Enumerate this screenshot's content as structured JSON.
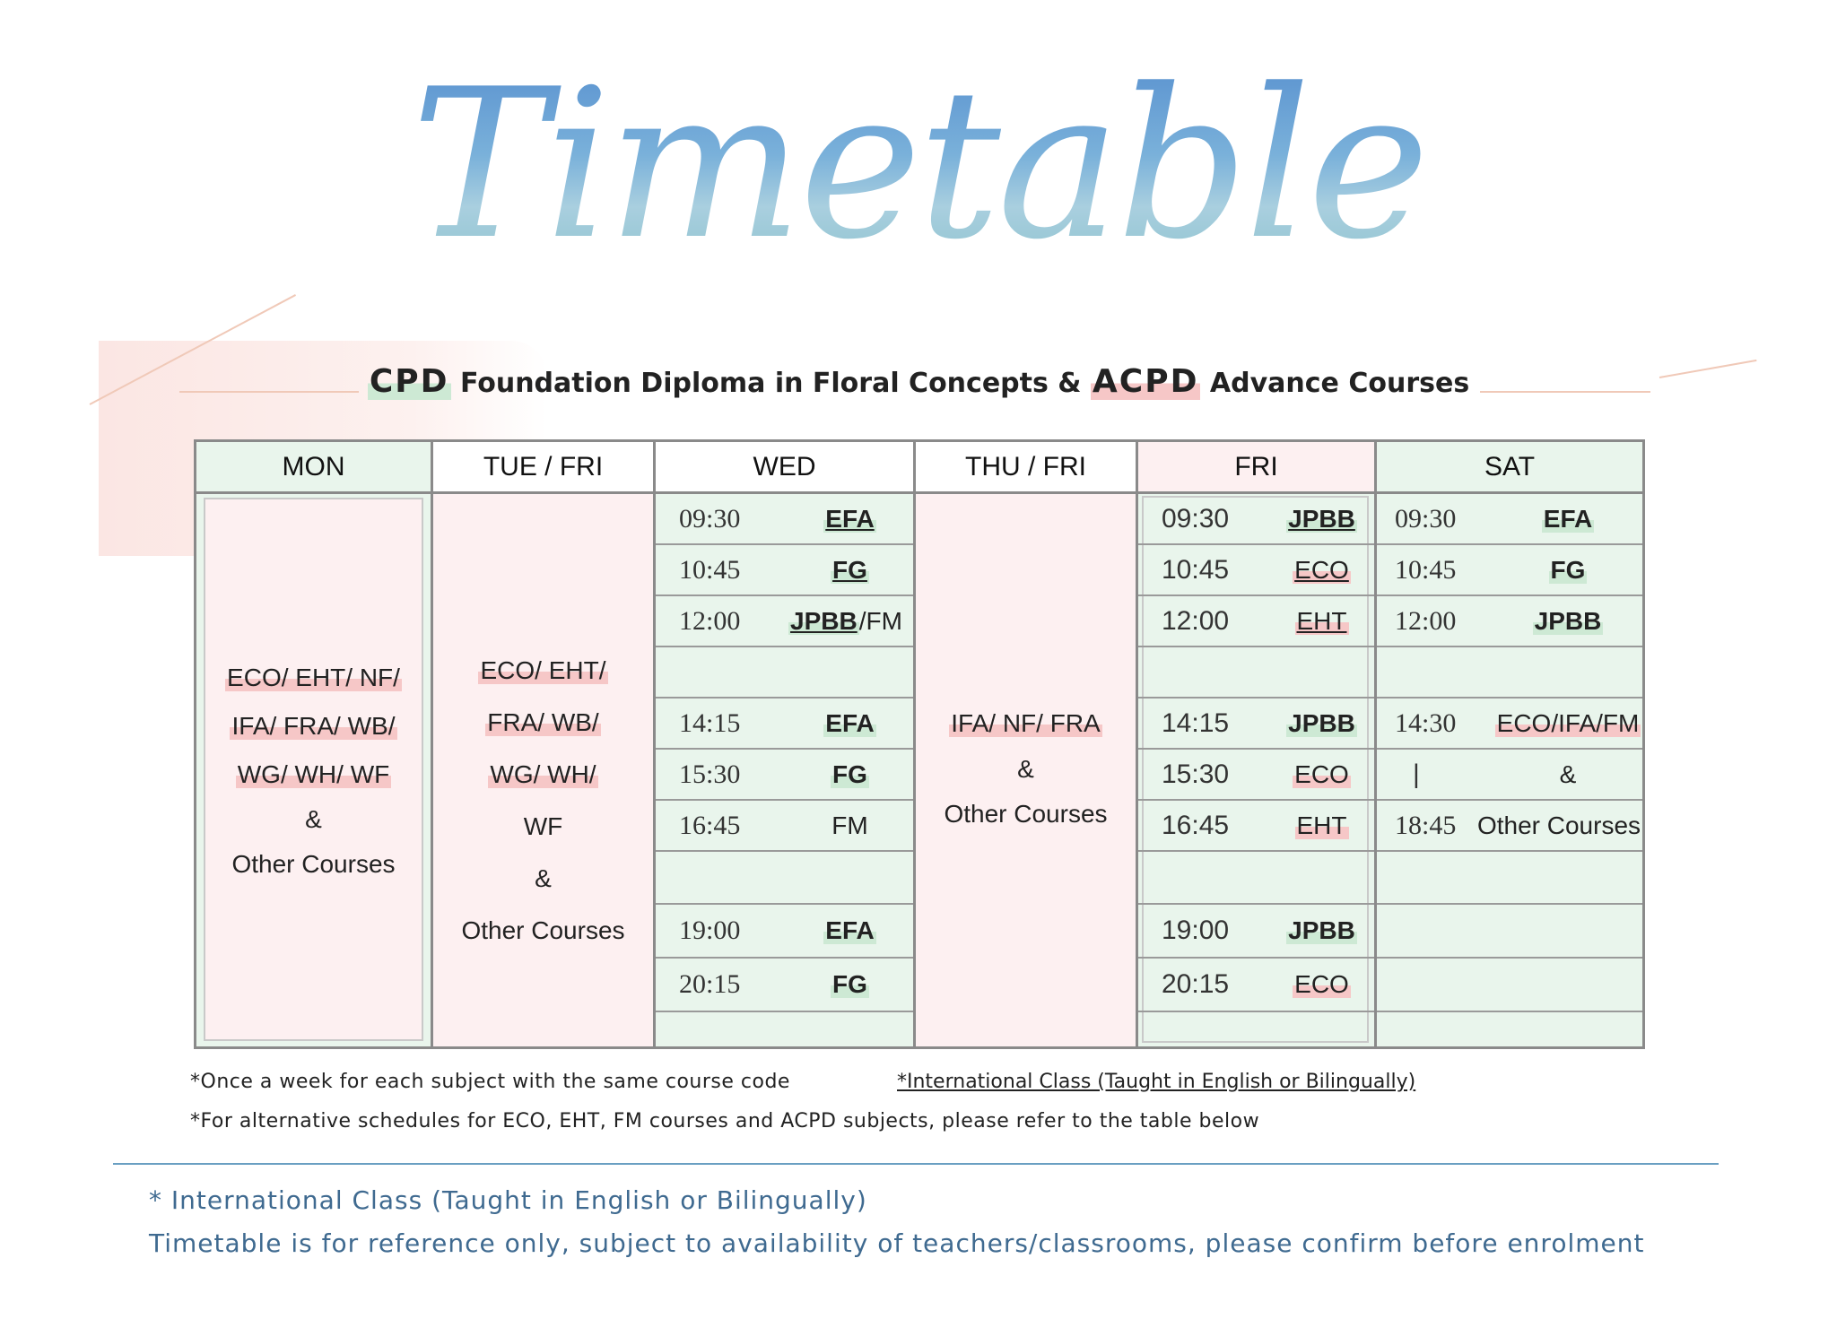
{
  "title": "Timetable",
  "subtitle": {
    "cpd": "CPD",
    "foundation": "Foundation Diploma in Floral Concepts &",
    "acpd": "ACPD",
    "advance": "Advance Courses"
  },
  "columns": {
    "mon": {
      "header": "MON",
      "lines": [
        "ECO/ EHT/ NF/",
        "IFA/ FRA/ WB/",
        "WG/ WH/ WF",
        "&",
        "Other Courses"
      ]
    },
    "tue": {
      "header": "TUE / FRI",
      "lines": [
        "ECO/ EHT/",
        "FRA/ WB/",
        "WG/ WH/",
        "WF",
        "&",
        "Other Courses"
      ]
    },
    "wed": {
      "header": "WED",
      "rows": [
        {
          "time": "09:30",
          "code": "EFA"
        },
        {
          "time": "10:45",
          "code": "FG"
        },
        {
          "time": "12:00",
          "code": "JPBB",
          "extra": "/FM"
        },
        {
          "time": "",
          "code": ""
        },
        {
          "time": "14:15",
          "code": "EFA"
        },
        {
          "time": "15:30",
          "code": "FG"
        },
        {
          "time": "16:45",
          "code": "FM"
        },
        {
          "time": "",
          "code": ""
        },
        {
          "time": "19:00",
          "code": "EFA"
        },
        {
          "time": "20:15",
          "code": "FG"
        }
      ]
    },
    "thu": {
      "header": "THU / FRI",
      "lines": [
        "IFA/ NF/ FRA",
        "&",
        "Other Courses"
      ]
    },
    "fri": {
      "header": "FRI",
      "rows": [
        {
          "time": "09:30",
          "code": "JPBB"
        },
        {
          "time": "10:45",
          "code": "ECO"
        },
        {
          "time": "12:00",
          "code": "EHT"
        },
        {
          "time": "",
          "code": ""
        },
        {
          "time": "14:15",
          "code": "JPBB"
        },
        {
          "time": "15:30",
          "code": "ECO"
        },
        {
          "time": "16:45",
          "code": "EHT"
        },
        {
          "time": "",
          "code": ""
        },
        {
          "time": "19:00",
          "code": "JPBB"
        },
        {
          "time": "20:15",
          "code": "ECO"
        }
      ]
    },
    "sat": {
      "header": "SAT",
      "rows": [
        {
          "time": "09:30",
          "code": "EFA"
        },
        {
          "time": "10:45",
          "code": "FG"
        },
        {
          "time": "12:00",
          "code": "JPBB"
        },
        {
          "time": "",
          "code": ""
        },
        {
          "time": "14:30",
          "code": "ECO/IFA/FM"
        },
        {
          "time": "|",
          "code": "&"
        },
        {
          "time": "18:45",
          "code": "Other Courses"
        },
        {
          "time": "",
          "code": ""
        },
        {
          "time": "",
          "code": ""
        },
        {
          "time": "",
          "code": ""
        }
      ]
    }
  },
  "notes": {
    "once": "*Once a week for each subject with the same course code",
    "intl": "*International Class (Taught in English or Bilingually)",
    "alt": "*For alternative schedules for ECO, EHT, FM courses and ACPD subjects, please refer to the table below"
  },
  "footer": {
    "intl": "* International Class (Taught in English or Bilingually)",
    "ref": "Timetable is for reference only, subject to availability of teachers/classrooms, please confirm before enrolment"
  },
  "colors": {
    "green_fill": "#e9f5ec",
    "pink_fill": "#fdf0f1",
    "green_highlight": "#cde9d4",
    "pink_highlight": "#f6c7c7",
    "footer_text": "#3f6a90"
  }
}
